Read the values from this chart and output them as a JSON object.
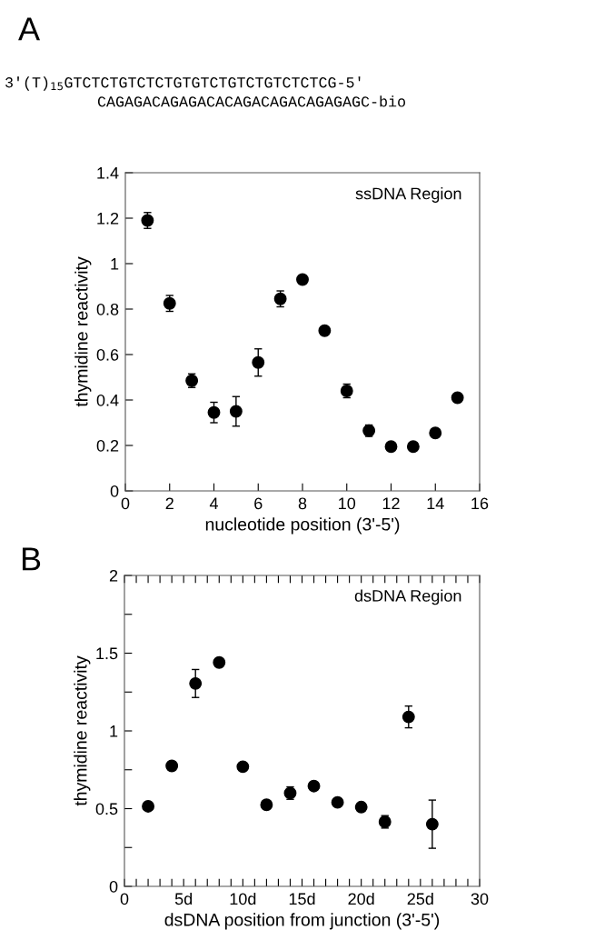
{
  "chart_data": [
    {
      "type": "scatter",
      "title": "A",
      "xlabel": "nucleotide position (3'-5')",
      "ylabel": "thymidine reactivity",
      "annotations": [
        "3′(T)$_{15}$GTCTCTGTCTCTGTGTCTGTCTGTCTCTCG-5′",
        "CAGAGACAGAGACACAGACAGACAGAGAGC-bio",
        "ssDNA Region"
      ],
      "series": [
        {
          "color": "#000000",
          "x": [
            1,
            2,
            3,
            4,
            5,
            6,
            7,
            8,
            9,
            10,
            11,
            12,
            13,
            14,
            15
          ],
          "values": [
            1.19,
            0.825,
            0.485,
            0.345,
            0.35,
            0.565,
            0.845,
            0.93,
            0.705,
            0.44,
            0.265,
            0.195,
            0.195,
            0.255,
            0.41
          ],
          "errors": [
            0.035,
            0.035,
            0.03,
            0.045,
            0.065,
            0.06,
            0.035,
            null,
            0.015,
            0.03,
            0.025,
            null,
            null,
            null,
            null
          ]
        }
      ],
      "marker": "circle",
      "xlim": [
        0,
        16
      ],
      "xticks": [
        0,
        2,
        4,
        6,
        8,
        10,
        12,
        14,
        16
      ],
      "ylim": [
        0,
        1.4
      ],
      "yticks": [
        0,
        0.2,
        0.4,
        0.6,
        0.8,
        1,
        1.2,
        1.4
      ],
      "grid": false,
      "legend": false
    },
    {
      "type": "scatter",
      "title": "B",
      "xlabel": "dsDNA position from junction (3'-5')",
      "ylabel": "thymidine reactivity",
      "annotations": [
        "dsDNA Region"
      ],
      "series": [
        {
          "color": "#000000",
          "x": [
            2,
            4,
            6,
            8,
            10,
            12,
            14,
            16,
            18,
            20,
            22,
            24,
            26
          ],
          "values": [
            0.515,
            0.775,
            1.305,
            1.44,
            0.77,
            0.525,
            0.6,
            0.645,
            0.54,
            0.51,
            0.415,
            1.09,
            0.4
          ],
          "errors": [
            null,
            null,
            0.09,
            null,
            null,
            null,
            0.04,
            null,
            null,
            null,
            0.04,
            0.07,
            0.155
          ]
        }
      ],
      "marker": "circle",
      "xlim": [
        0,
        30
      ],
      "xticks": [
        0,
        {
          "value": 1,
          "label": null
        },
        {
          "value": 2,
          "label": null
        },
        {
          "value": 3,
          "label": null
        },
        {
          "value": 4,
          "label": null
        },
        {
          "value": 5,
          "label": "5d"
        },
        {
          "value": 6,
          "label": null
        },
        {
          "value": 7,
          "label": null
        },
        {
          "value": 8,
          "label": null
        },
        {
          "value": 9,
          "label": null
        },
        {
          "value": 10,
          "label": "10d"
        },
        {
          "value": 11,
          "label": null
        },
        {
          "value": 12,
          "label": null
        },
        {
          "value": 13,
          "label": null
        },
        {
          "value": 14,
          "label": null
        },
        {
          "value": 15,
          "label": "15d"
        },
        {
          "value": 16,
          "label": null
        },
        {
          "value": 17,
          "label": null
        },
        {
          "value": 18,
          "label": null
        },
        {
          "value": 19,
          "label": null
        },
        {
          "value": 20,
          "label": "20d"
        },
        {
          "value": 21,
          "label": null
        },
        {
          "value": 22,
          "label": null
        },
        {
          "value": 23,
          "label": null
        },
        {
          "value": 24,
          "label": null
        },
        {
          "value": 25,
          "label": "25d"
        },
        {
          "value": 26,
          "label": null
        },
        {
          "value": 27,
          "label": null
        },
        {
          "value": 28,
          "label": null
        },
        {
          "value": 29,
          "label": null
        },
        30
      ],
      "ylim": [
        0,
        2
      ],
      "yticks": [
        0,
        {
          "value": 0.25,
          "label": null
        },
        0.5,
        {
          "value": 0.75,
          "label": null
        },
        1,
        {
          "value": 1.25,
          "label": null
        },
        1.5,
        {
          "value": 1.75,
          "label": null
        },
        2
      ],
      "grid": false,
      "legend": false
    }
  ]
}
